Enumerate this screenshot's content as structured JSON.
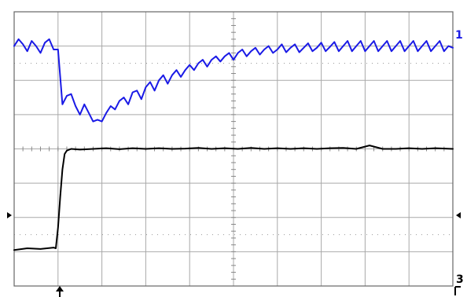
{
  "chart_data": {
    "type": "line",
    "grid": true,
    "xlim": [
      0,
      10
    ],
    "ylim": [
      -4,
      4
    ],
    "series": [
      {
        "id": "ch1",
        "marker_label": "1",
        "color": "#1a1ae6",
        "x": [
          0,
          0.1,
          0.2,
          0.3,
          0.4,
          0.5,
          0.6,
          0.7,
          0.8,
          0.9,
          1.0,
          1.1,
          1.2,
          1.3,
          1.4,
          1.5,
          1.6,
          1.7,
          1.8,
          1.9,
          2.0,
          2.1,
          2.2,
          2.3,
          2.4,
          2.5,
          2.6,
          2.7,
          2.8,
          2.9,
          3.0,
          3.1,
          3.2,
          3.3,
          3.4,
          3.5,
          3.6,
          3.7,
          3.8,
          3.9,
          4.0,
          4.1,
          4.2,
          4.3,
          4.4,
          4.5,
          4.6,
          4.7,
          4.8,
          4.9,
          5.0,
          5.1,
          5.2,
          5.3,
          5.4,
          5.5,
          5.6,
          5.7,
          5.8,
          5.9,
          6.0,
          6.1,
          6.2,
          6.3,
          6.4,
          6.5,
          6.6,
          6.7,
          6.8,
          6.9,
          7.0,
          7.1,
          7.2,
          7.3,
          7.4,
          7.5,
          7.6,
          7.7,
          7.8,
          7.9,
          8.0,
          8.1,
          8.2,
          8.3,
          8.4,
          8.5,
          8.6,
          8.7,
          8.8,
          8.9,
          9.0,
          9.1,
          9.2,
          9.3,
          9.4,
          9.5,
          9.6,
          9.7,
          9.8,
          9.9,
          10.0
        ],
        "y": [
          3.0,
          3.2,
          3.05,
          2.85,
          3.15,
          3.0,
          2.8,
          3.1,
          3.2,
          2.9,
          2.9,
          1.3,
          1.55,
          1.6,
          1.25,
          1.0,
          1.3,
          1.05,
          0.8,
          0.85,
          0.8,
          1.05,
          1.25,
          1.15,
          1.4,
          1.5,
          1.3,
          1.65,
          1.7,
          1.45,
          1.8,
          1.95,
          1.7,
          2.0,
          2.15,
          1.9,
          2.15,
          2.3,
          2.1,
          2.3,
          2.45,
          2.3,
          2.5,
          2.6,
          2.4,
          2.6,
          2.7,
          2.55,
          2.7,
          2.8,
          2.6,
          2.8,
          2.9,
          2.7,
          2.85,
          2.95,
          2.75,
          2.9,
          3.0,
          2.8,
          2.9,
          3.05,
          2.82,
          2.95,
          3.05,
          2.82,
          2.95,
          3.08,
          2.85,
          2.95,
          3.1,
          2.85,
          2.98,
          3.12,
          2.85,
          3.0,
          3.15,
          2.85,
          3.0,
          3.15,
          2.85,
          3.0,
          3.15,
          2.85,
          3.0,
          3.15,
          2.85,
          3.0,
          3.15,
          2.85,
          3.0,
          3.15,
          2.85,
          3.0,
          3.15,
          2.85,
          3.0,
          3.15,
          2.85,
          3.0,
          2.95
        ]
      },
      {
        "id": "ch3",
        "marker_label": "3",
        "color": "#000000",
        "x": [
          0,
          0.3,
          0.6,
          0.9,
          0.95,
          1.0,
          1.05,
          1.1,
          1.15,
          1.2,
          1.3,
          1.5,
          1.8,
          2.1,
          2.4,
          2.7,
          3.0,
          3.3,
          3.6,
          3.9,
          4.2,
          4.5,
          4.8,
          5.1,
          5.4,
          5.7,
          6.0,
          6.3,
          6.6,
          6.9,
          7.2,
          7.5,
          7.8,
          8.1,
          8.4,
          8.7,
          9.0,
          9.3,
          9.6,
          10.0
        ],
        "y": [
          -2.95,
          -2.9,
          -2.92,
          -2.88,
          -2.9,
          -2.3,
          -1.4,
          -0.6,
          -0.15,
          -0.05,
          0.0,
          -0.02,
          0.0,
          0.02,
          -0.01,
          0.02,
          0.0,
          0.02,
          0.0,
          0.01,
          0.03,
          0.0,
          0.02,
          0.0,
          0.03,
          0.0,
          0.02,
          0.0,
          0.02,
          0.0,
          0.02,
          0.03,
          0.0,
          0.1,
          0.0,
          0.0,
          0.02,
          0.0,
          0.02,
          0.0
        ]
      }
    ]
  }
}
